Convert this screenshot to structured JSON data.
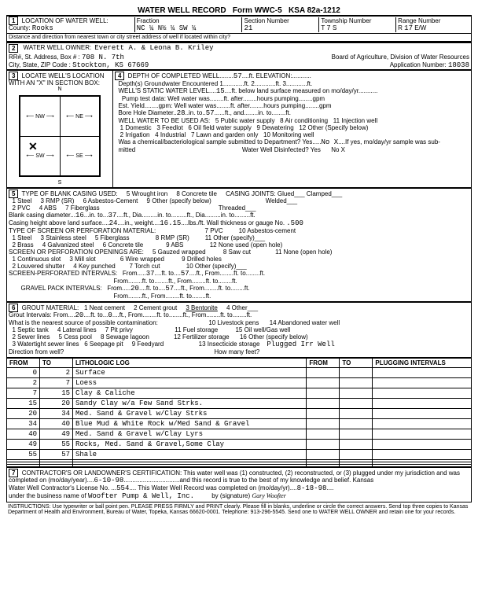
{
  "header": {
    "title": "WATER WELL RECORD",
    "form": "Form WWC-5",
    "ksa": "KSA 82a-1212"
  },
  "loc": {
    "county": "Rooks",
    "fraction": "NC ¼ N½ ¼ SW ¼",
    "section": "21",
    "township": "7",
    "ts": "S",
    "range": "17",
    "rw": "E/W"
  },
  "owner": {
    "name": "Everett A. & Leona B. Kriley",
    "address": "708 N. 7th",
    "city": "Stockton, KS  67669",
    "board": "Board of Agriculture, Division of Water Resources",
    "appnum": "18038"
  },
  "depth": {
    "completed": "57",
    "elevation": "",
    "groundwater": "1",
    "ft2": "2",
    "ft3": "3",
    "static": "15",
    "boredia": "28",
    "boreto": "57",
    "nox": "No X"
  },
  "uses": {
    "u1": "1 Domestic",
    "u2": "2 Irrigation",
    "u3": "3 Feedlot",
    "u4": "4 Industrial",
    "u5": "5 Public water supply",
    "u6": "6 Oil field water supply",
    "u7": "7 Lawn and garden only",
    "u8": "8 Air conditioning",
    "u9": "9 Dewatering",
    "u10": "10 Monitoring well",
    "u11": "11 Injection well",
    "u12": "12 Other (Specify below)"
  },
  "casing": {
    "dia": "16",
    "to": "37",
    "height": "24",
    "weight": "16.15",
    "gauge": ".500"
  },
  "casingtypes": {
    "t1": "1 Steel",
    "t2": "2 PVC",
    "t3": "3 RMP (SR)",
    "t4": "4 ABS",
    "t5": "5 Wrought iron",
    "t6": "6 Asbestos-Cement",
    "t7": "7 Fiberglass",
    "t8": "8 Concrete tile",
    "t9": "9 Other (specify below)",
    "joints": "CASING JOINTS: Glued___ Clamped___",
    "welded": "Welded___",
    "threaded": "Threaded___"
  },
  "screenmat": {
    "s1": "1 Steel",
    "s2": "2 Brass",
    "s3": "3 Stainless steel",
    "s4": "4 Galvanized steel",
    "s5": "5 Fiberglass",
    "s6": "6 Concrete tile",
    "s7": "7 PVC",
    "s8": "8 RMP (SR)",
    "s10": "10 Asbestos-cement",
    "s11": "11 Other (specify)___",
    "s12": "12 None used (open hole)"
  },
  "openings": {
    "o1": "1 Continuous slot",
    "o2": "2 Louvered shutter",
    "o3": "3 Mill slot",
    "o4": "4 Key punched",
    "o5": "5 Gauzed wrapped",
    "o6": "6 Wire wrapped",
    "o7": "7 Torch cut",
    "o8": "8 Saw cut",
    "o9": "9 Drilled holes",
    "o10": "10 Other (specify)___",
    "o11": "11 None (open hole)"
  },
  "intervals": {
    "screen_from": "37",
    "screen_to": "57",
    "gravel_from": "20",
    "gravel_to": "57"
  },
  "grout": {
    "g1": "1 Neat cement",
    "g2": "2 Cement grout",
    "g3": "3 Bentonite",
    "g4": "4 Other___",
    "from": "20",
    "to": "0"
  },
  "contam": {
    "c1": "1 Septic tank",
    "c2": "2 Sewer lines",
    "c3": "3 Watertight sewer lines",
    "c4": "4 Lateral lines",
    "c5": "5 Cess pool",
    "c6": "6 Seepage pit",
    "c7": "7 Pit privy",
    "c8": "8 Sewage lagoon",
    "c9": "9 Feedyard",
    "c10": "10 Livestock pens",
    "c11": "11 Fuel storage",
    "c12": "12 Fertilizer storage",
    "c13": "13 Insecticide storage",
    "c14": "14 Abandoned water well",
    "c15": "15 Oil well/Gas well",
    "c16": "16 Other (specify below)",
    "note": "Plugged Irr Well"
  },
  "log": [
    {
      "f": "0",
      "t": "2",
      "d": "Surface"
    },
    {
      "f": "2",
      "t": "7",
      "d": "Loess"
    },
    {
      "f": "7",
      "t": "15",
      "d": "Clay & Caliche"
    },
    {
      "f": "15",
      "t": "20",
      "d": "Sandy Clay w/a Few Sand Strks."
    },
    {
      "f": "20",
      "t": "34",
      "d": "Med. Sand & Gravel w/Clay Strks"
    },
    {
      "f": "34",
      "t": "40",
      "d": "Blue Mud & White Rock w/Med Sand & Gravel"
    },
    {
      "f": "40",
      "t": "49",
      "d": "Med. Sand & Gravel w/Clay Lyrs"
    },
    {
      "f": "49",
      "t": "55",
      "d": "Rocks, Med. Sand & Gravel,Some Clay"
    },
    {
      "f": "55",
      "t": "57",
      "d": "Shale"
    }
  ],
  "cert": {
    "text": "CONTRACTOR'S OR LANDOWNER'S CERTIFICATION: This water well was (1) constructed, (2) reconstructed, or (3) plugged under my jurisdiction and was",
    "date1": "6-10-98",
    "text2": "and this record is true to the best of my knowledge and belief. Kansas",
    "license": "554",
    "date2": "8-18-98",
    "business": "Woofter Pump & Well, Inc."
  },
  "instr": "INSTRUCTIONS: Use typewriter or ball point pen. PLEASE PRESS FIRMLY and PRINT clearly. Please fill in blanks, underline or circle the correct answers. Send top three copies to Kansas Department of Health and Environment, Bureau of Water, Topeka, Kansas 66620-0001. Telephone: 913-296-5545. Send one to WATER WELL OWNER and retain one for your records."
}
